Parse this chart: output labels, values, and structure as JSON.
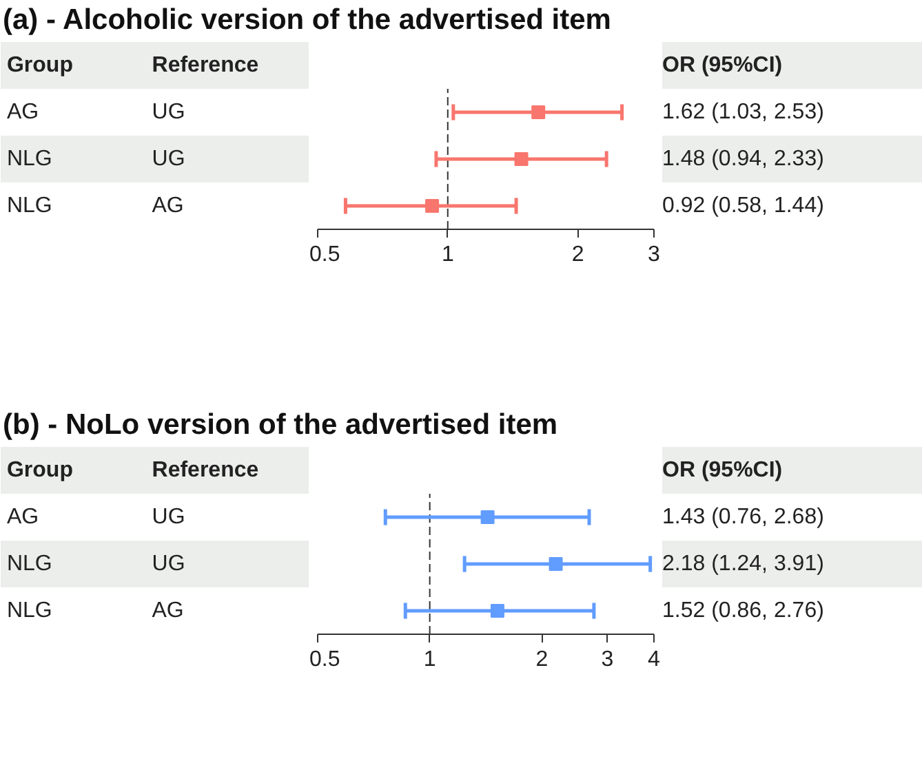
{
  "chart_data": [
    {
      "type": "scatter",
      "orientation": "horizontal",
      "title": "(a) - Alcoholic version of the advertised item",
      "categories": [
        "AG",
        "NLG",
        "NLG"
      ],
      "values": [
        1.62,
        1.48,
        0.92
      ],
      "errors": [
        [
          1.03,
          2.53
        ],
        [
          0.94,
          2.33
        ],
        [
          0.58,
          1.44
        ]
      ],
      "value_labels": [
        "1.62 (1.03, 2.53)",
        "1.48 (0.94, 2.33)",
        "0.92 (0.58, 1.44)"
      ],
      "annotations": [
        "Group",
        "Reference",
        "OR (95%CI)",
        "UG",
        "UG",
        "AG"
      ],
      "color": "#f8766d",
      "marker": "square",
      "log": "x",
      "grid": false,
      "tick_labels": "x",
      "xlim": [
        0.5,
        3
      ],
      "xticks": [
        0.5,
        1,
        2,
        3
      ],
      "ref_lines": [
        {
          "axis": "x",
          "value": 1,
          "line_style": "dashed",
          "color": "#333333"
        }
      ]
    },
    {
      "type": "scatter",
      "orientation": "horizontal",
      "title": "(b) - NoLo version of the advertised item",
      "categories": [
        "AG",
        "NLG",
        "NLG"
      ],
      "values": [
        1.43,
        2.18,
        1.52
      ],
      "errors": [
        [
          0.76,
          2.68
        ],
        [
          1.24,
          3.91
        ],
        [
          0.86,
          2.76
        ]
      ],
      "value_labels": [
        "1.43 (0.76, 2.68)",
        "2.18 (1.24, 3.91)",
        "1.52 (0.86, 2.76)"
      ],
      "annotations": [
        "Group",
        "Reference",
        "OR (95%CI)",
        "UG",
        "UG",
        "AG"
      ],
      "color": "#619cff",
      "marker": "square",
      "log": "x",
      "grid": false,
      "tick_labels": "x",
      "xlim": [
        0.5,
        4
      ],
      "xticks": [
        0.5,
        1,
        2,
        3,
        4
      ],
      "ref_lines": [
        {
          "axis": "x",
          "value": 1,
          "line_style": "dashed",
          "color": "#333333"
        }
      ]
    }
  ]
}
